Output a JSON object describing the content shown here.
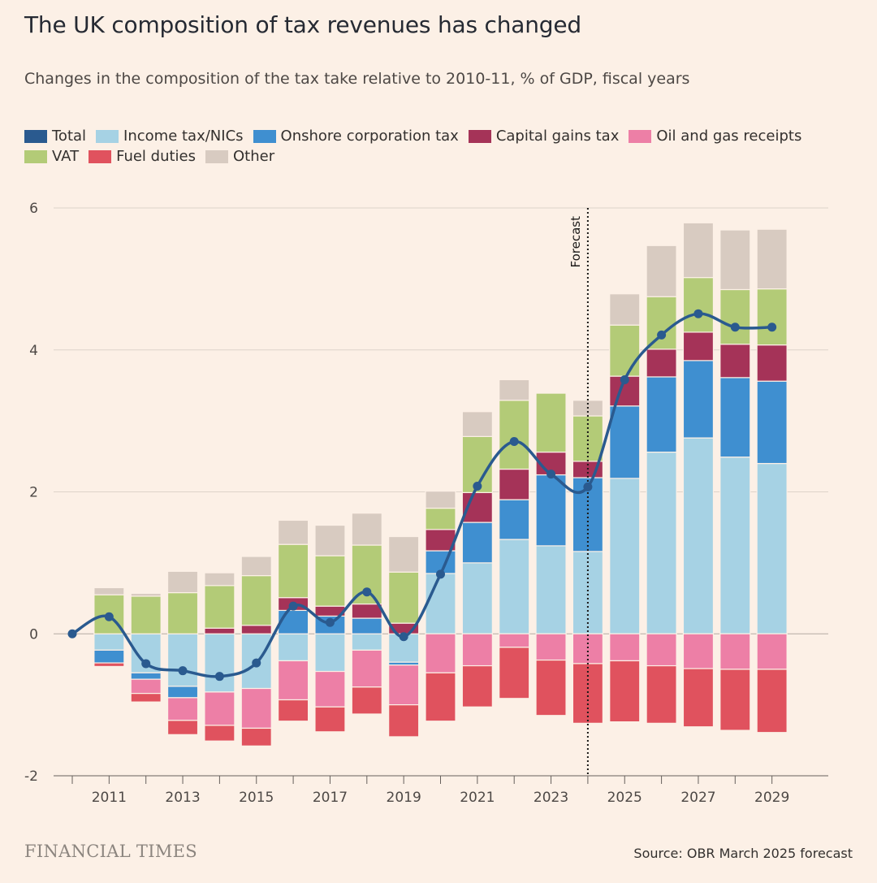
{
  "header": {
    "title": "The UK composition of tax revenues has changed",
    "subtitle": "Changes in the composition of the tax take relative to 2010-11, % of GDP, fiscal years"
  },
  "footer": {
    "brand": "FINANCIAL TIMES",
    "source": "Source: OBR March 2025 forecast"
  },
  "forecast_label": "Forecast",
  "chart_data": {
    "type": "bar",
    "stacked": true,
    "x": [
      2010,
      2011,
      2012,
      2013,
      2014,
      2015,
      2016,
      2017,
      2018,
      2019,
      2020,
      2021,
      2022,
      2023,
      2024,
      2025,
      2026,
      2027,
      2028,
      2029
    ],
    "x_ticks": [
      "2011",
      "2013",
      "2015",
      "2017",
      "2019",
      "2021",
      "2023",
      "2025",
      "2027",
      "2029"
    ],
    "ylim": [
      -2,
      6
    ],
    "y_ticks": [
      -2,
      0,
      2,
      4,
      6
    ],
    "grid": true,
    "forecast_start": 2024,
    "series": [
      {
        "name": "Income tax/NICs",
        "color": "#a6d2e4",
        "values": [
          0,
          -0.23,
          -0.55,
          -0.74,
          -0.82,
          -0.77,
          -0.38,
          -0.53,
          -0.23,
          -0.4,
          0.85,
          1.0,
          1.33,
          1.24,
          1.16,
          2.19,
          2.56,
          2.76,
          2.49,
          2.4
        ]
      },
      {
        "name": "Onshore corporation tax",
        "color": "#3f8fd0",
        "values": [
          0,
          -0.18,
          -0.09,
          -0.16,
          0,
          0,
          0.33,
          0.25,
          0.22,
          -0.04,
          0.32,
          0.57,
          0.56,
          1.0,
          1.04,
          1.02,
          1.06,
          1.09,
          1.12,
          1.16
        ]
      },
      {
        "name": "Capital gains tax",
        "color": "#a53358",
        "values": [
          0,
          0,
          0,
          0,
          0.08,
          0.12,
          0.18,
          0.14,
          0.2,
          0.15,
          0.3,
          0.42,
          0.43,
          0.32,
          0.23,
          0.42,
          0.39,
          0.4,
          0.47,
          0.51
        ]
      },
      {
        "name": "Oil and gas receipts",
        "color": "#ed7fa6",
        "values": [
          0,
          0,
          -0.2,
          -0.32,
          -0.47,
          -0.56,
          -0.55,
          -0.5,
          -0.52,
          -0.56,
          -0.55,
          -0.45,
          -0.19,
          -0.37,
          -0.42,
          -0.38,
          -0.45,
          -0.49,
          -0.5,
          -0.5
        ]
      },
      {
        "name": "VAT",
        "color": "#b3cb77",
        "values": [
          0,
          0.55,
          0.53,
          0.58,
          0.6,
          0.7,
          0.75,
          0.71,
          0.83,
          0.72,
          0.3,
          0.79,
          0.97,
          0.83,
          0.64,
          0.72,
          0.74,
          0.77,
          0.77,
          0.79
        ]
      },
      {
        "name": "Fuel duties",
        "color": "#e0525e",
        "values": [
          0,
          -0.05,
          -0.12,
          -0.2,
          -0.22,
          -0.25,
          -0.3,
          -0.35,
          -0.38,
          -0.45,
          -0.68,
          -0.58,
          -0.72,
          -0.78,
          -0.84,
          -0.86,
          -0.81,
          -0.82,
          -0.86,
          -0.89
        ]
      },
      {
        "name": "Other",
        "color": "#d8cbc1",
        "values": [
          0,
          0.1,
          0.04,
          0.3,
          0.18,
          0.27,
          0.34,
          0.43,
          0.45,
          0.5,
          0.24,
          0.35,
          0.29,
          0.0,
          0.22,
          0.44,
          0.72,
          0.77,
          0.84,
          0.84
        ]
      }
    ],
    "total": {
      "name": "Total",
      "color": "#2a5a8f",
      "values": [
        0,
        0.24,
        -0.42,
        -0.52,
        -0.6,
        -0.41,
        0.39,
        0.16,
        0.59,
        -0.04,
        0.84,
        2.08,
        2.71,
        2.25,
        2.07,
        3.58,
        4.21,
        4.51,
        4.32,
        4.32
      ]
    }
  }
}
